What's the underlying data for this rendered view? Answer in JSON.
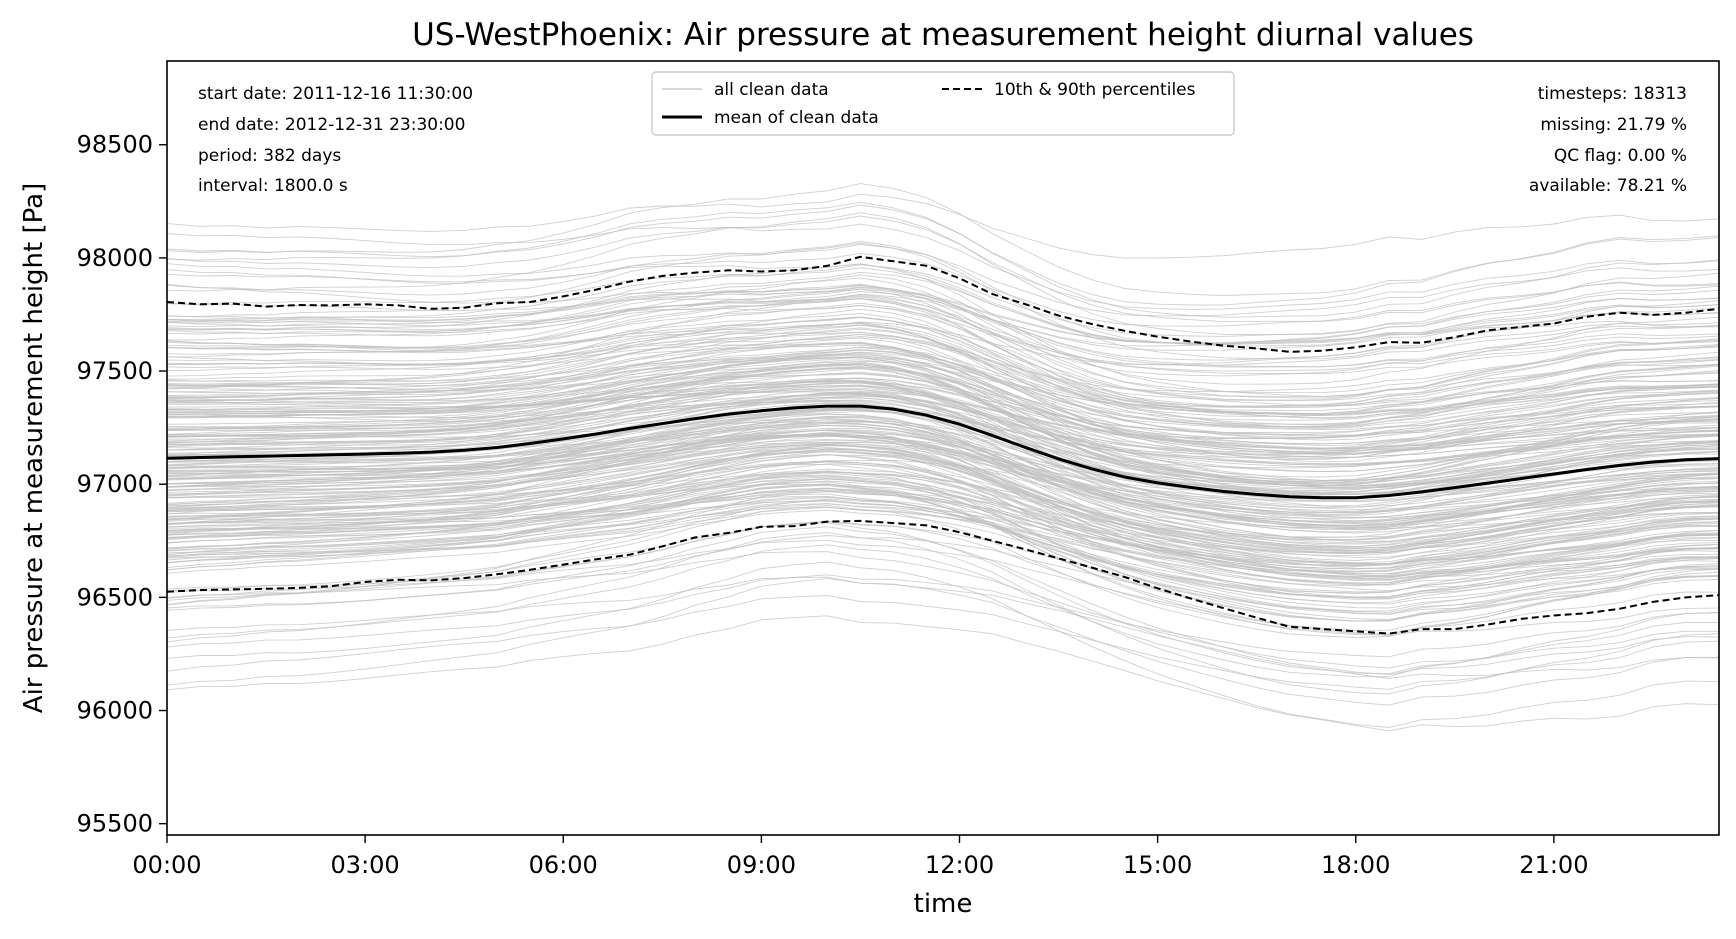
{
  "chart_data": {
    "type": "line",
    "title": "US-WestPhoenix: Air pressure at measurement height diurnal values",
    "xlabel": "time",
    "ylabel": "Air pressure at measurement height [Pa]",
    "xlim": [
      0,
      23.5
    ],
    "ylim": [
      95450,
      98870
    ],
    "x_ticks": [
      "00:00",
      "03:00",
      "06:00",
      "09:00",
      "12:00",
      "15:00",
      "18:00",
      "21:00"
    ],
    "y_ticks": [
      95500,
      96000,
      96500,
      97000,
      97500,
      98000,
      98500
    ],
    "grid": false,
    "legend_position": "top-center",
    "legend": {
      "all_clean": "all clean data",
      "mean": "mean of clean data",
      "percentiles": "10th & 90th percentiles"
    },
    "info_left": {
      "start": "start date: 2011-12-16 11:30:00",
      "end": "end date: 2012-12-31 23:30:00",
      "period": "period: 382 days",
      "interval": "interval: 1800.0 s"
    },
    "info_right": {
      "timesteps": "timesteps: 18313",
      "missing": "missing: 21.79 %",
      "qc": "QC flag: 0.00 %",
      "available": "available: 78.21 %"
    },
    "colors": {
      "clean_data": "#c0c0c0",
      "mean": "#000000",
      "percentiles": "#000000"
    },
    "x": [
      0,
      0.5,
      1,
      1.5,
      2,
      2.5,
      3,
      3.5,
      4,
      4.5,
      5,
      5.5,
      6,
      6.5,
      7,
      7.5,
      8,
      8.5,
      9,
      9.5,
      10,
      10.5,
      11,
      11.5,
      12,
      12.5,
      13,
      13.5,
      14,
      14.5,
      15,
      15.5,
      16,
      16.5,
      17,
      17.5,
      18,
      18.5,
      19,
      19.5,
      20,
      20.5,
      21,
      21.5,
      22,
      22.5,
      23,
      23.5
    ],
    "series": [
      {
        "name": "mean of clean data",
        "style": "solid",
        "values": [
          97115,
          97118,
          97121,
          97124,
          97127,
          97130,
          97133,
          97137,
          97142,
          97150,
          97162,
          97180,
          97200,
          97222,
          97246,
          97268,
          97290,
          97310,
          97325,
          97337,
          97345,
          97345,
          97332,
          97305,
          97265,
          97215,
          97162,
          97112,
          97068,
          97032,
          97006,
          96986,
          96968,
          96955,
          96945,
          96940,
          96940,
          96950,
          96966,
          96985,
          97005,
          97025,
          97045,
          97065,
          97083,
          97098,
          97108,
          97113
        ]
      },
      {
        "name": "10th percentile",
        "style": "dashed",
        "values": [
          96525,
          96532,
          96535,
          96538,
          96542,
          96550,
          96568,
          96578,
          96575,
          96585,
          96602,
          96622,
          96645,
          96668,
          96688,
          96725,
          96765,
          96785,
          96812,
          96815,
          96835,
          96838,
          96828,
          96818,
          96788,
          96750,
          96712,
          96672,
          96632,
          96590,
          96540,
          96495,
          96452,
          96410,
          96370,
          96360,
          96350,
          96340,
          96360,
          96360,
          96380,
          96405,
          96420,
          96430,
          96450,
          96480,
          96500,
          96510
        ]
      },
      {
        "name": "90th percentile",
        "style": "dashed",
        "values": [
          97805,
          97795,
          97798,
          97785,
          97792,
          97790,
          97795,
          97790,
          97775,
          97780,
          97800,
          97805,
          97830,
          97860,
          97895,
          97920,
          97935,
          97945,
          97940,
          97945,
          97965,
          98005,
          97985,
          97965,
          97910,
          97840,
          97795,
          97745,
          97708,
          97678,
          97652,
          97630,
          97612,
          97600,
          97585,
          97590,
          97605,
          97628,
          97625,
          97650,
          97680,
          97695,
          97710,
          97740,
          97758,
          97748,
          97758,
          97775
        ]
      }
    ]
  }
}
